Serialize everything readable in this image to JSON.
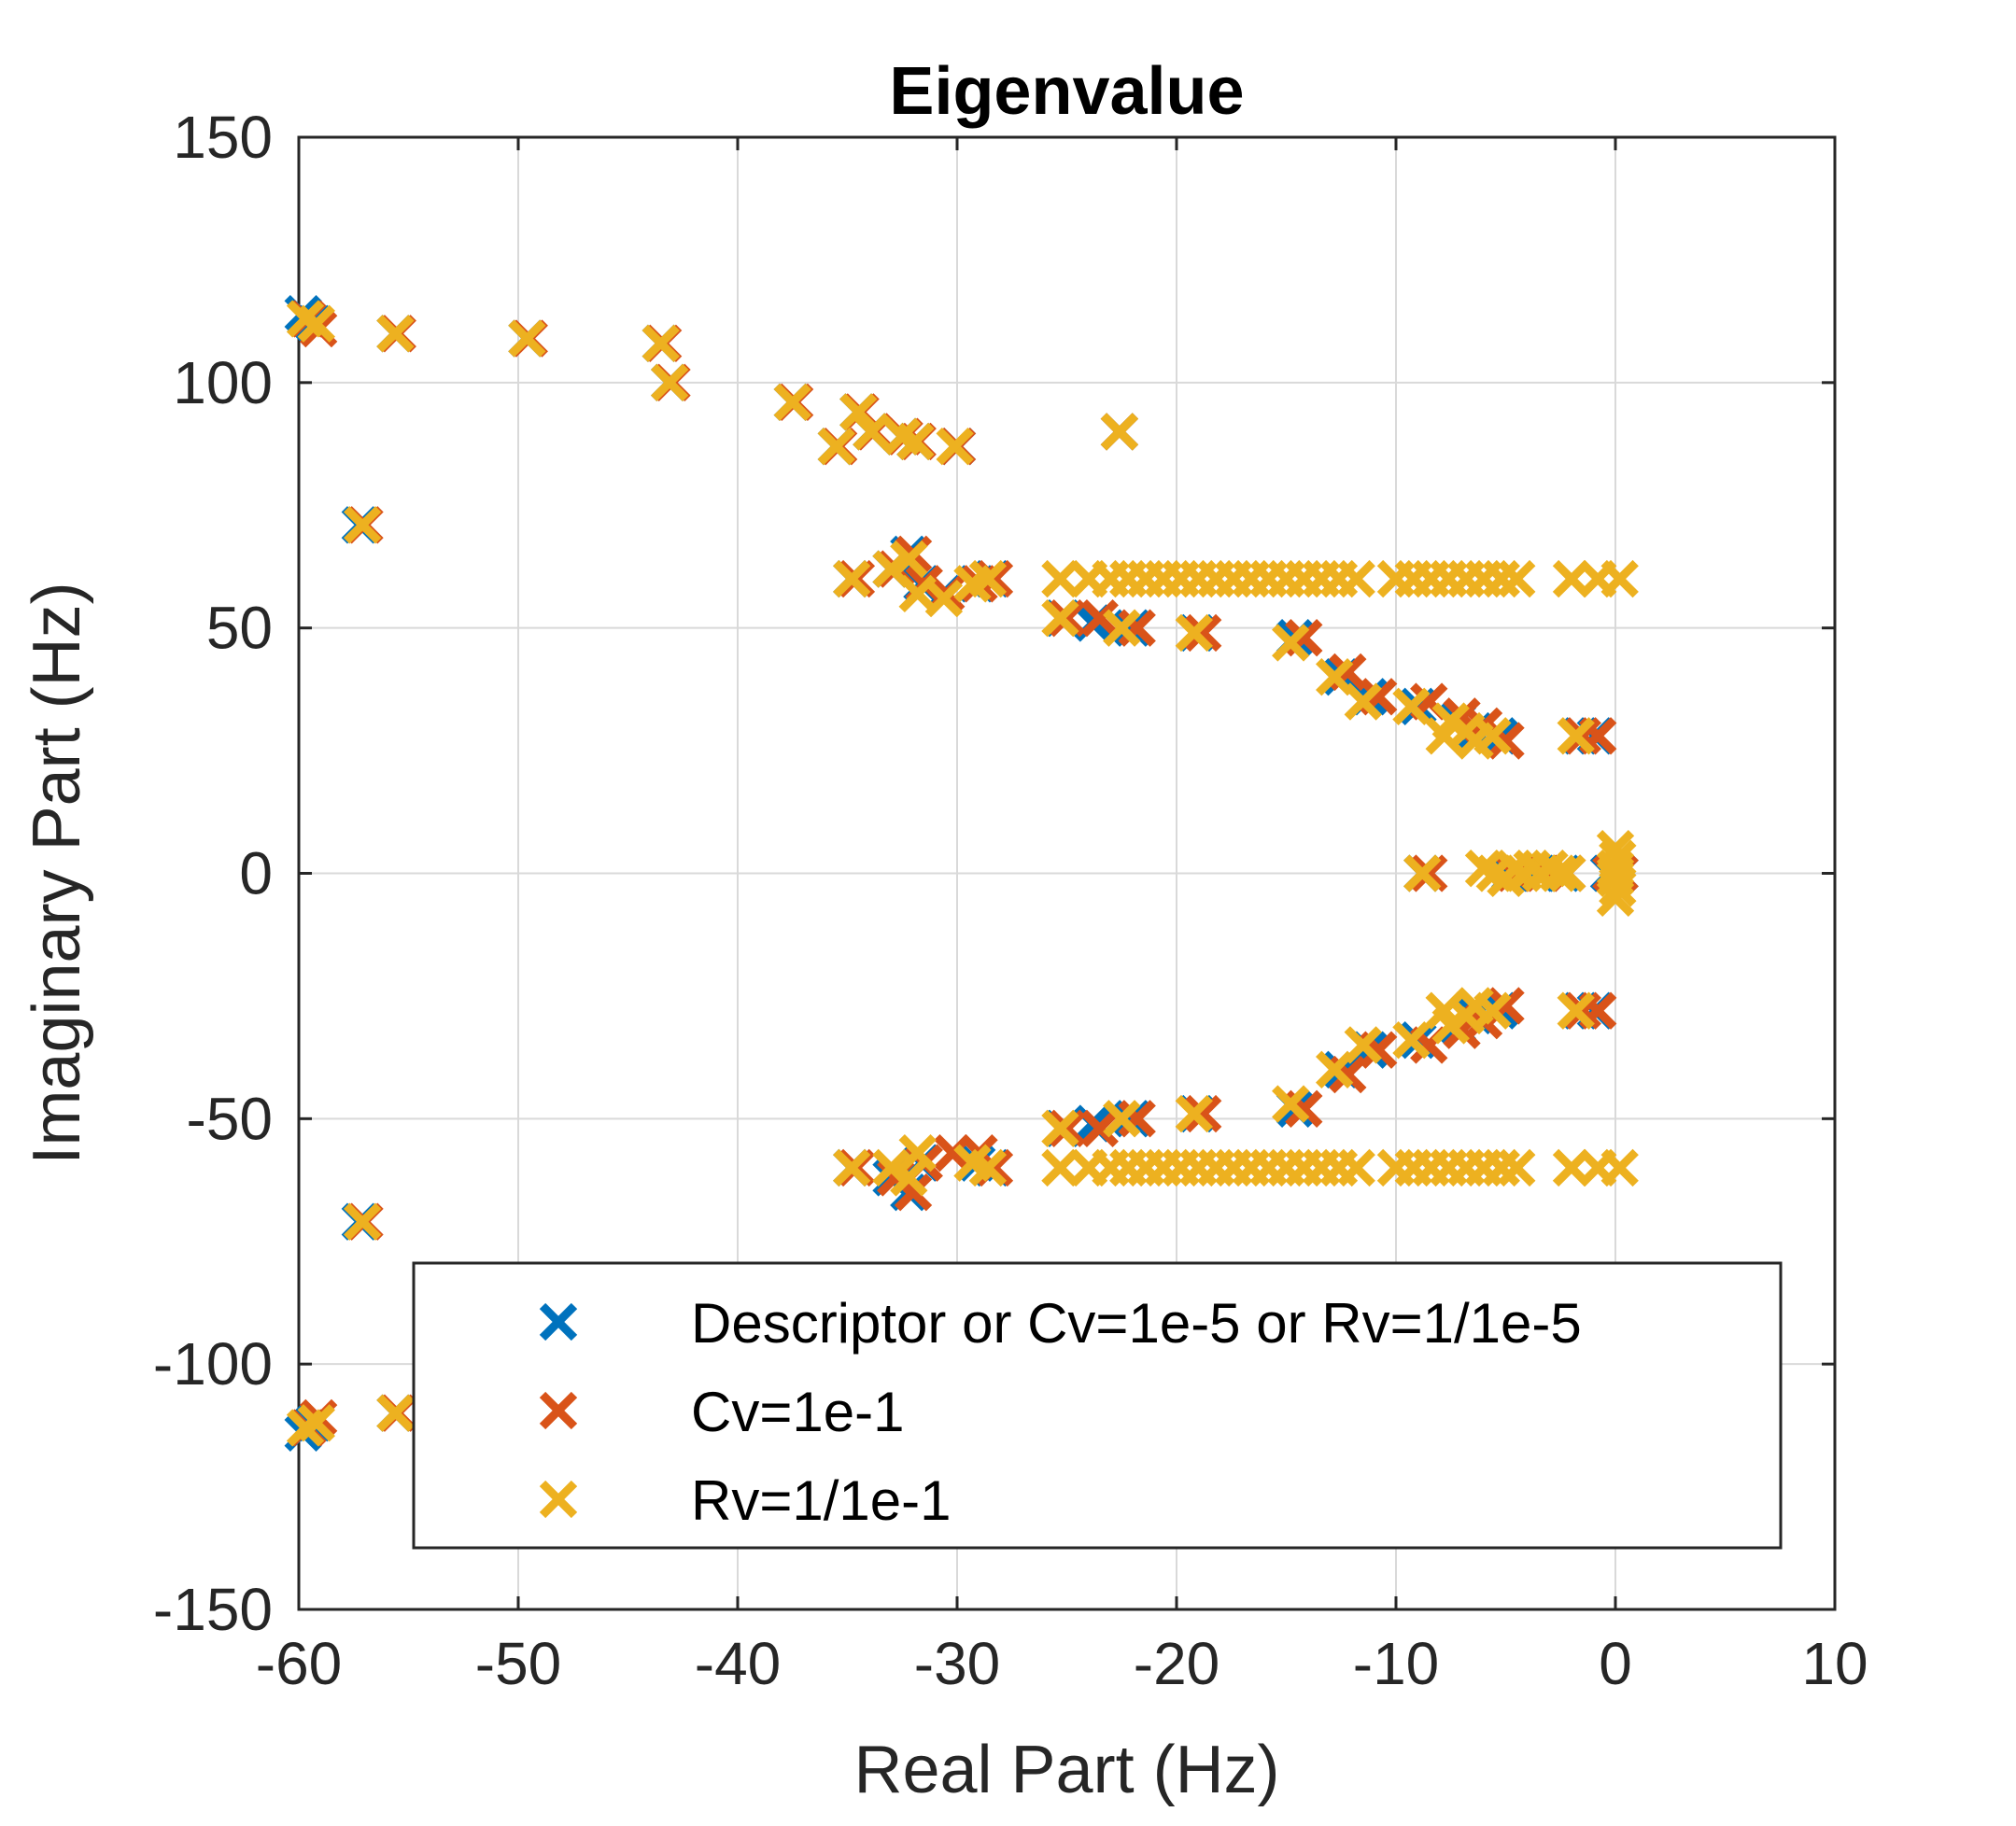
{
  "chart_data": {
    "type": "scatter",
    "title": "Eigenvalue",
    "xlabel": "Real Part (Hz)",
    "ylabel": "Imaginary Part (Hz)",
    "xlim": [
      -60,
      10
    ],
    "ylim": [
      -150,
      150
    ],
    "xticks": [
      -60,
      -50,
      -40,
      -30,
      -20,
      -10,
      0,
      10
    ],
    "yticks": [
      -150,
      -100,
      -50,
      0,
      50,
      100,
      150
    ],
    "grid": true,
    "legend_position": "bottom-right",
    "series": [
      {
        "name": "Descriptor or Cv=1e-5 or Rv=1/1e-5",
        "color": "#0072BD",
        "marker": "x",
        "points": [
          [
            -59.8,
            114
          ],
          [
            -59.3,
            112
          ],
          [
            -55.6,
            110
          ],
          [
            -57.2,
            71
          ],
          [
            -49.6,
            109
          ],
          [
            -43.5,
            108
          ],
          [
            -43.1,
            100
          ],
          [
            -37.5,
            96
          ],
          [
            -34.5,
            94
          ],
          [
            -33.9,
            90
          ],
          [
            -35.5,
            87
          ],
          [
            -32.5,
            89
          ],
          [
            -31.9,
            88
          ],
          [
            -30.0,
            87
          ],
          [
            -22.6,
            90
          ],
          [
            -34.8,
            60
          ],
          [
            -33.0,
            62
          ],
          [
            -32.2,
            65
          ],
          [
            -31.6,
            59
          ],
          [
            -30.6,
            57
          ],
          [
            -29.1,
            59
          ],
          [
            -28.4,
            60
          ],
          [
            -25.2,
            52
          ],
          [
            -23.8,
            51
          ],
          [
            -22.0,
            50
          ],
          [
            -19.1,
            49
          ],
          [
            -14.6,
            48
          ],
          [
            -12.5,
            40
          ],
          [
            -11.2,
            36
          ],
          [
            -9.0,
            34
          ],
          [
            -7.2,
            31
          ],
          [
            -6.4,
            29
          ],
          [
            -5.3,
            28
          ],
          [
            -1.6,
            28
          ],
          [
            -0.9,
            28
          ],
          [
            -8.8,
            0
          ],
          [
            -4.8,
            0
          ],
          [
            -3.5,
            0
          ],
          [
            -2.4,
            0
          ],
          [
            -0.3,
            0
          ],
          [
            0.2,
            0
          ],
          [
            -59.8,
            -114
          ],
          [
            -59.3,
            -112
          ],
          [
            -55.6,
            -110
          ],
          [
            -57.2,
            -71
          ],
          [
            -34.8,
            -60
          ],
          [
            -33.0,
            -62
          ],
          [
            -32.2,
            -65
          ],
          [
            -31.6,
            -59
          ],
          [
            -29.1,
            -59
          ],
          [
            -28.4,
            -60
          ],
          [
            -25.2,
            -52
          ],
          [
            -23.8,
            -51
          ],
          [
            -22.0,
            -50
          ],
          [
            -19.1,
            -49
          ],
          [
            -14.6,
            -48
          ],
          [
            -12.5,
            -40
          ],
          [
            -11.2,
            -36
          ],
          [
            -9.0,
            -34
          ],
          [
            -7.2,
            -31
          ],
          [
            -6.4,
            -29
          ],
          [
            -5.3,
            -28
          ],
          [
            -1.6,
            -28
          ],
          [
            -0.9,
            -28
          ]
        ]
      },
      {
        "name": "Cv=1e-1",
        "color": "#D95319",
        "marker": "x",
        "points": [
          [
            -59.6,
            113
          ],
          [
            -59.1,
            111
          ],
          [
            -55.5,
            110
          ],
          [
            -57.0,
            71
          ],
          [
            -49.5,
            109
          ],
          [
            -43.4,
            108
          ],
          [
            -43.0,
            100
          ],
          [
            -37.4,
            96
          ],
          [
            -34.4,
            94
          ],
          [
            -33.8,
            90
          ],
          [
            -35.4,
            87
          ],
          [
            -32.4,
            89
          ],
          [
            -31.8,
            88
          ],
          [
            -30.0,
            87
          ],
          [
            -22.6,
            90
          ],
          [
            -34.6,
            60
          ],
          [
            -32.8,
            62
          ],
          [
            -32.0,
            65
          ],
          [
            -31.5,
            59
          ],
          [
            -30.5,
            57
          ],
          [
            -29.0,
            59
          ],
          [
            -28.3,
            60
          ],
          [
            -25.0,
            52
          ],
          [
            -23.5,
            52
          ],
          [
            -21.8,
            50
          ],
          [
            -18.8,
            49
          ],
          [
            -14.2,
            48
          ],
          [
            -12.2,
            41
          ],
          [
            -10.8,
            36
          ],
          [
            -8.5,
            35
          ],
          [
            -7.0,
            32
          ],
          [
            -6.0,
            30
          ],
          [
            -5.0,
            27
          ],
          [
            -1.5,
            28
          ],
          [
            -0.8,
            28
          ],
          [
            -8.5,
            0
          ],
          [
            -4.6,
            0
          ],
          [
            -3.3,
            0
          ],
          [
            -2.2,
            0
          ],
          [
            -0.2,
            0
          ],
          [
            0.2,
            0
          ],
          [
            -59.6,
            -113
          ],
          [
            -59.1,
            -111
          ],
          [
            -55.5,
            -110
          ],
          [
            -57.0,
            -71
          ],
          [
            -34.6,
            -60
          ],
          [
            -32.8,
            -62
          ],
          [
            -32.0,
            -65
          ],
          [
            -31.5,
            -59
          ],
          [
            -30.2,
            -57
          ],
          [
            -29.0,
            -57
          ],
          [
            -28.3,
            -60
          ],
          [
            -25.0,
            -52
          ],
          [
            -23.5,
            -52
          ],
          [
            -21.8,
            -50
          ],
          [
            -18.8,
            -49
          ],
          [
            -14.2,
            -48
          ],
          [
            -12.2,
            -41
          ],
          [
            -10.8,
            -36
          ],
          [
            -8.5,
            -35
          ],
          [
            -7.0,
            -32
          ],
          [
            -6.0,
            -30
          ],
          [
            -5.0,
            -27
          ],
          [
            -1.5,
            -28
          ],
          [
            -0.8,
            -28
          ]
        ]
      },
      {
        "name": "Rv=1/1e-1",
        "color": "#EDB120",
        "marker": "x",
        "points": [
          [
            -59.7,
            113
          ],
          [
            -59.2,
            112
          ],
          [
            -55.6,
            110
          ],
          [
            -57.1,
            71
          ],
          [
            -49.6,
            109
          ],
          [
            -43.5,
            108
          ],
          [
            -43.1,
            100
          ],
          [
            -37.5,
            96
          ],
          [
            -34.5,
            94
          ],
          [
            -33.9,
            90
          ],
          [
            -35.5,
            87
          ],
          [
            -32.5,
            89
          ],
          [
            -31.9,
            88
          ],
          [
            -30.1,
            87
          ],
          [
            -22.6,
            90
          ],
          [
            -34.8,
            60
          ],
          [
            -33.0,
            62
          ],
          [
            -32.2,
            64
          ],
          [
            -31.8,
            57
          ],
          [
            -30.6,
            56
          ],
          [
            -29.3,
            59
          ],
          [
            -28.6,
            60
          ],
          [
            -25.3,
            52
          ],
          [
            -25.3,
            60
          ],
          [
            -24.0,
            60
          ],
          [
            -23.0,
            60
          ],
          [
            -22.2,
            60
          ],
          [
            -21.4,
            60
          ],
          [
            -20.6,
            60
          ],
          [
            -19.8,
            60
          ],
          [
            -19.0,
            60
          ],
          [
            -18.2,
            60
          ],
          [
            -17.4,
            60
          ],
          [
            -16.6,
            60
          ],
          [
            -15.8,
            60
          ],
          [
            -15.0,
            60
          ],
          [
            -14.2,
            60
          ],
          [
            -13.4,
            60
          ],
          [
            -12.6,
            60
          ],
          [
            -11.8,
            60
          ],
          [
            -10.0,
            60
          ],
          [
            -9.2,
            60
          ],
          [
            -8.4,
            60
          ],
          [
            -7.6,
            60
          ],
          [
            -6.8,
            60
          ],
          [
            -6.0,
            60
          ],
          [
            -5.2,
            60
          ],
          [
            -4.5,
            60
          ],
          [
            -2.0,
            60
          ],
          [
            -0.8,
            60
          ],
          [
            0.2,
            60
          ],
          [
            -22.5,
            50
          ],
          [
            -19.2,
            49
          ],
          [
            -14.8,
            47
          ],
          [
            -12.8,
            40
          ],
          [
            -11.5,
            35
          ],
          [
            -9.3,
            34
          ],
          [
            -7.5,
            31
          ],
          [
            -7.8,
            28
          ],
          [
            -6.8,
            29
          ],
          [
            -6.4,
            27
          ],
          [
            -5.6,
            28
          ],
          [
            -1.8,
            28
          ],
          [
            -8.8,
            0
          ],
          [
            -6.0,
            1
          ],
          [
            -5.5,
            0
          ],
          [
            -5.0,
            -1
          ],
          [
            -4.6,
            1
          ],
          [
            -4.2,
            0
          ],
          [
            -3.8,
            1
          ],
          [
            -3.4,
            0
          ],
          [
            -3.0,
            1
          ],
          [
            -2.6,
            0
          ],
          [
            -2.2,
            0
          ],
          [
            0.0,
            5
          ],
          [
            0.1,
            3
          ],
          [
            0.0,
            1
          ],
          [
            0.0,
            -1
          ],
          [
            0.1,
            -3
          ],
          [
            0.0,
            -5
          ],
          [
            -59.7,
            -113
          ],
          [
            -59.2,
            -112
          ],
          [
            -55.6,
            -110
          ],
          [
            -57.1,
            -71
          ],
          [
            -34.8,
            -60
          ],
          [
            -33.0,
            -60
          ],
          [
            -32.2,
            -62
          ],
          [
            -31.8,
            -57
          ],
          [
            -29.3,
            -59
          ],
          [
            -28.6,
            -60
          ],
          [
            -25.3,
            -52
          ],
          [
            -25.3,
            -60
          ],
          [
            -24.0,
            -60
          ],
          [
            -23.0,
            -60
          ],
          [
            -22.2,
            -60
          ],
          [
            -21.4,
            -60
          ],
          [
            -20.6,
            -60
          ],
          [
            -19.8,
            -60
          ],
          [
            -19.0,
            -60
          ],
          [
            -18.2,
            -60
          ],
          [
            -17.4,
            -60
          ],
          [
            -16.6,
            -60
          ],
          [
            -15.8,
            -60
          ],
          [
            -15.0,
            -60
          ],
          [
            -14.2,
            -60
          ],
          [
            -13.4,
            -60
          ],
          [
            -12.6,
            -60
          ],
          [
            -11.8,
            -60
          ],
          [
            -10.0,
            -60
          ],
          [
            -9.2,
            -60
          ],
          [
            -8.4,
            -60
          ],
          [
            -7.6,
            -60
          ],
          [
            -6.8,
            -60
          ],
          [
            -6.0,
            -60
          ],
          [
            -5.2,
            -60
          ],
          [
            -4.5,
            -60
          ],
          [
            -2.0,
            -60
          ],
          [
            -0.8,
            -60
          ],
          [
            0.2,
            -60
          ],
          [
            -22.5,
            -50
          ],
          [
            -19.2,
            -49
          ],
          [
            -14.8,
            -47
          ],
          [
            -12.8,
            -40
          ],
          [
            -11.5,
            -35
          ],
          [
            -9.3,
            -34
          ],
          [
            -7.5,
            -31
          ],
          [
            -7.8,
            -28
          ],
          [
            -6.8,
            -29
          ],
          [
            -6.4,
            -27
          ],
          [
            -5.6,
            -28
          ],
          [
            -1.8,
            -28
          ]
        ]
      }
    ]
  }
}
